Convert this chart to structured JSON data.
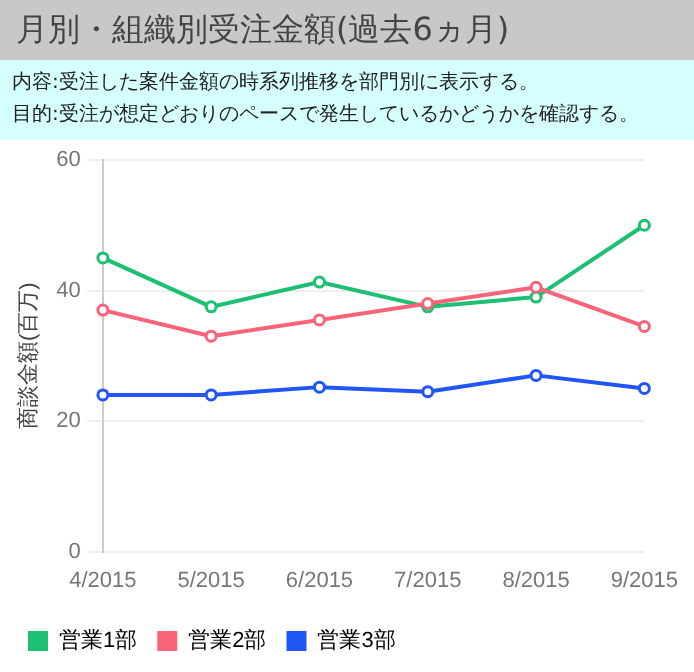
{
  "chart_data": {
    "type": "line",
    "title": "月別・組織別受注金額(過去6ヵ月)",
    "annotations": [
      "内容:受注した案件金額の時系列推移を部門別に表示する。",
      "目的:受注が想定どおりのペースで発生しているかどうかを確認する。"
    ],
    "ylabel": "商談金額(百万)",
    "categories": [
      "4/2015",
      "5/2015",
      "6/2015",
      "7/2015",
      "8/2015",
      "9/2015"
    ],
    "series": [
      {
        "name": "営業1部",
        "color": "#1dbf73",
        "values": [
          45,
          37.5,
          41.3,
          37.5,
          39,
          50
        ]
      },
      {
        "name": "営業2部",
        "color": "#f7647a",
        "values": [
          37,
          33,
          35.5,
          38,
          40.5,
          34.5
        ]
      },
      {
        "name": "営業3部",
        "color": "#2255f5",
        "values": [
          24,
          24,
          25.2,
          24.5,
          27,
          25
        ]
      }
    ],
    "ylim": [
      0,
      60
    ],
    "yticks": [
      0,
      20,
      40,
      60
    ],
    "grid": "y",
    "legend": "bottom left",
    "marker": "circle",
    "line_style": "solid"
  }
}
